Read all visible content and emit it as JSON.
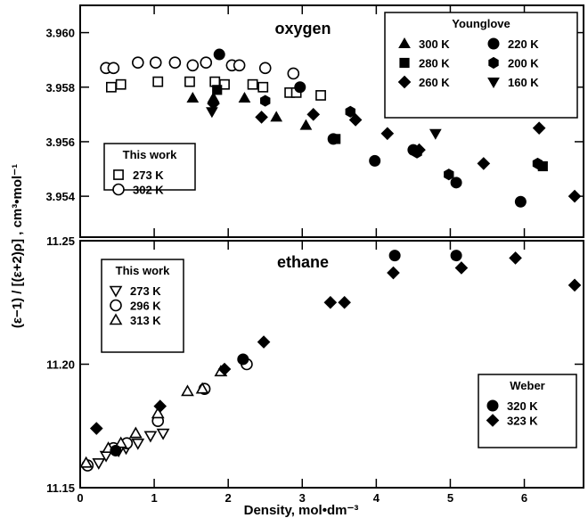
{
  "chart_data": {
    "type": "scatter",
    "xlabel": "Density,  mol•dm⁻³",
    "ylabel": "(ε−1) / [(ε+2)ρ] ,   cm³•mol⁻¹",
    "xlim": [
      0,
      6.8
    ],
    "xticks": [
      "0",
      "1",
      "2",
      "3",
      "4",
      "5",
      "6"
    ],
    "panels": [
      {
        "title": "oxygen",
        "ylim": [
          3.9525,
          3.961
        ],
        "yticks": [
          "3.960",
          "3.958",
          "3.956",
          "3.954"
        ],
        "legends": [
          {
            "title": "Younglove",
            "entries": [
              {
                "marker": "triangle",
                "filled": true,
                "label": "300 K"
              },
              {
                "marker": "circle",
                "filled": true,
                "label": "220 K"
              },
              {
                "marker": "square",
                "filled": true,
                "label": "280 K"
              },
              {
                "marker": "hexagon",
                "filled": true,
                "label": "200 K"
              },
              {
                "marker": "diamond",
                "filled": true,
                "label": "260 K"
              },
              {
                "marker": "triangle-down",
                "filled": true,
                "label": "160 K"
              }
            ]
          },
          {
            "title": "This work",
            "entries": [
              {
                "marker": "square",
                "filled": false,
                "label": "273 K"
              },
              {
                "marker": "circle",
                "filled": false,
                "label": "302 K"
              }
            ]
          }
        ],
        "series": [
          {
            "name": "273 K",
            "marker": "square",
            "filled": false,
            "x": [
              0.42,
              0.55,
              1.05,
              1.48,
              1.82,
              1.95,
              2.33,
              2.47,
              2.83,
              2.92,
              3.25
            ],
            "y": [
              3.958,
              3.9581,
              3.9582,
              3.9582,
              3.9582,
              3.9581,
              3.9581,
              3.958,
              3.9578,
              3.9578,
              3.9577
            ]
          },
          {
            "name": "302 K",
            "marker": "circle",
            "filled": false,
            "x": [
              0.35,
              0.45,
              0.78,
              1.02,
              1.28,
              1.52,
              1.7,
              2.05,
              2.15,
              2.5,
              2.88
            ],
            "y": [
              3.9587,
              3.9587,
              3.9589,
              3.9589,
              3.9589,
              3.9588,
              3.9589,
              3.9588,
              3.9588,
              3.9587,
              3.9585
            ]
          },
          {
            "name": "300 K",
            "marker": "triangle",
            "filled": true,
            "x": [
              1.52,
              1.8,
              2.22,
              2.65,
              3.05
            ],
            "y": [
              3.9576,
              3.9576,
              3.9576,
              3.9569,
              3.9566
            ]
          },
          {
            "name": "280 K",
            "marker": "square",
            "filled": true,
            "x": [
              1.85,
              3.45,
              6.25
            ],
            "y": [
              3.9579,
              3.9561,
              3.9551
            ]
          },
          {
            "name": "260 K",
            "marker": "diamond",
            "filled": true,
            "x": [
              1.8,
              2.45,
              3.15,
              3.72,
              4.15,
              4.58,
              5.45,
              6.2,
              6.68
            ],
            "y": [
              3.9574,
              3.9569,
              3.957,
              3.9568,
              3.9563,
              3.9557,
              3.9552,
              3.9565,
              3.954
            ]
          },
          {
            "name": "220 K",
            "marker": "circle",
            "filled": true,
            "x": [
              1.88,
              2.97,
              3.42,
              3.98,
              4.5,
              5.08,
              5.95
            ],
            "y": [
              3.9592,
              3.958,
              3.9561,
              3.9553,
              3.9557,
              3.9545,
              3.9538
            ]
          },
          {
            "name": "200 K",
            "marker": "hexagon",
            "filled": true,
            "x": [
              2.5,
              3.65,
              4.55,
              4.98,
              6.18
            ],
            "y": [
              3.9575,
              3.9571,
              3.9556,
              3.9548,
              3.9552
            ]
          },
          {
            "name": "160 K",
            "marker": "triangle-down",
            "filled": true,
            "x": [
              1.78,
              4.8
            ],
            "y": [
              3.9571,
              3.9563
            ]
          }
        ]
      },
      {
        "title": "ethane",
        "ylim": [
          11.15,
          11.25
        ],
        "yticks": [
          "11.25",
          "11.20",
          "11.15"
        ],
        "legends": [
          {
            "title": "This work",
            "entries": [
              {
                "marker": "triangle-down",
                "filled": false,
                "label": "273 K"
              },
              {
                "marker": "circle",
                "filled": false,
                "label": "296 K"
              },
              {
                "marker": "triangle",
                "filled": false,
                "label": "313 K"
              }
            ]
          },
          {
            "title": "Weber",
            "entries": [
              {
                "marker": "circle",
                "filled": true,
                "label": "320 K"
              },
              {
                "marker": "diamond",
                "filled": true,
                "label": "323 K"
              }
            ]
          }
        ],
        "series": [
          {
            "name": "273 K",
            "marker": "triangle-down",
            "filled": false,
            "x": [
              0.25,
              0.35,
              0.52,
              0.62,
              0.78,
              0.95,
              1.12
            ],
            "y": [
              11.16,
              11.163,
              11.165,
              11.166,
              11.168,
              11.171,
              11.172
            ]
          },
          {
            "name": "296 K",
            "marker": "circle",
            "filled": false,
            "x": [
              0.1,
              0.45,
              0.63,
              1.05,
              1.68,
              2.25
            ],
            "y": [
              11.159,
              11.166,
              11.168,
              11.177,
              11.19,
              11.2
            ]
          },
          {
            "name": "313 K",
            "marker": "triangle",
            "filled": false,
            "x": [
              0.08,
              0.38,
              0.55,
              0.75,
              1.05,
              1.45,
              1.65,
              1.9
            ],
            "y": [
              11.16,
              11.166,
              11.168,
              11.172,
              11.18,
              11.189,
              11.19,
              11.197
            ]
          },
          {
            "name": "320 K",
            "marker": "circle",
            "filled": true,
            "x": [
              0.48,
              2.2,
              4.25,
              5.08
            ],
            "y": [
              11.165,
              11.202,
              11.244,
              11.244
            ]
          },
          {
            "name": "323 K",
            "marker": "diamond",
            "filled": true,
            "x": [
              0.22,
              1.08,
              1.95,
              2.48,
              3.38,
              3.57,
              4.23,
              5.15,
              5.88,
              6.68
            ],
            "y": [
              11.174,
              11.183,
              11.198,
              11.209,
              11.225,
              11.225,
              11.237,
              11.239,
              11.243,
              11.232
            ]
          }
        ]
      }
    ]
  }
}
